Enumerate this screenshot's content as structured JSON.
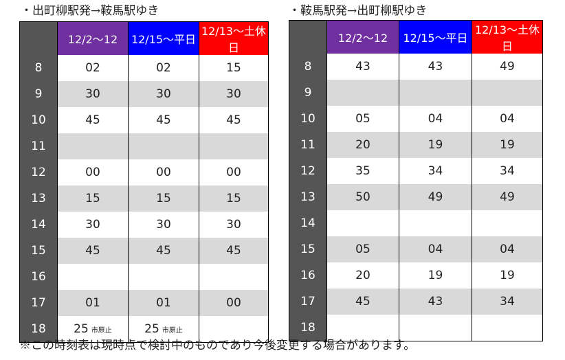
{
  "headers": [
    "12/2～12",
    "12/15～平日",
    "12/13～土休日"
  ],
  "header_colors": [
    "#7030a0",
    "#0000ff",
    "#ff0000"
  ],
  "left": {
    "title": "・出町柳駅発→鞍馬駅ゆき",
    "rows": [
      {
        "hour": "8",
        "v": [
          "02",
          "02",
          "15"
        ]
      },
      {
        "hour": "9",
        "v": [
          "30",
          "30",
          "30"
        ]
      },
      {
        "hour": "10",
        "v": [
          "45",
          "45",
          "45"
        ]
      },
      {
        "hour": "11",
        "v": [
          "",
          "",
          ""
        ]
      },
      {
        "hour": "12",
        "v": [
          "00",
          "00",
          "00"
        ]
      },
      {
        "hour": "13",
        "v": [
          "15",
          "15",
          "15"
        ]
      },
      {
        "hour": "14",
        "v": [
          "30",
          "30",
          "30"
        ]
      },
      {
        "hour": "15",
        "v": [
          "45",
          "45",
          "45"
        ]
      },
      {
        "hour": "16",
        "v": [
          "",
          "",
          ""
        ]
      },
      {
        "hour": "17",
        "v": [
          "01",
          "01",
          "00"
        ]
      },
      {
        "hour": "18",
        "v": [
          "25",
          "25",
          ""
        ],
        "n": [
          "市原止",
          "市原止",
          ""
        ]
      }
    ]
  },
  "right": {
    "title": "・鞍馬駅発→出町柳駅ゆき",
    "rows": [
      {
        "hour": "8",
        "v": [
          "43",
          "43",
          "49"
        ]
      },
      {
        "hour": "9",
        "v": [
          "",
          "",
          ""
        ]
      },
      {
        "hour": "10",
        "v": [
          "05",
          "04",
          "04"
        ]
      },
      {
        "hour": "11",
        "v": [
          "20",
          "19",
          "19"
        ]
      },
      {
        "hour": "12",
        "v": [
          "35",
          "34",
          "34"
        ]
      },
      {
        "hour": "13",
        "v": [
          "50",
          "49",
          "49"
        ]
      },
      {
        "hour": "14",
        "v": [
          "",
          "",
          ""
        ]
      },
      {
        "hour": "15",
        "v": [
          "05",
          "04",
          "04"
        ]
      },
      {
        "hour": "16",
        "v": [
          "20",
          "19",
          "19"
        ]
      },
      {
        "hour": "17",
        "v": [
          "45",
          "43",
          "34"
        ]
      },
      {
        "hour": "18",
        "v": [
          "",
          "",
          ""
        ]
      }
    ]
  },
  "note": "※この時刻表は現時点で検討中のものであり今後変更する場合があります。"
}
